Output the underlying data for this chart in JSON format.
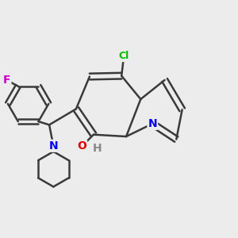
{
  "background_color": "#ececec",
  "bond_color": "#3a3a3a",
  "atom_colors": {
    "N": "#0000ee",
    "O": "#dd0000",
    "F": "#cc00cc",
    "Cl": "#00bb00",
    "H": "#888888",
    "C": "#3a3a3a"
  },
  "figsize": [
    3.0,
    3.0
  ],
  "dpi": 100
}
